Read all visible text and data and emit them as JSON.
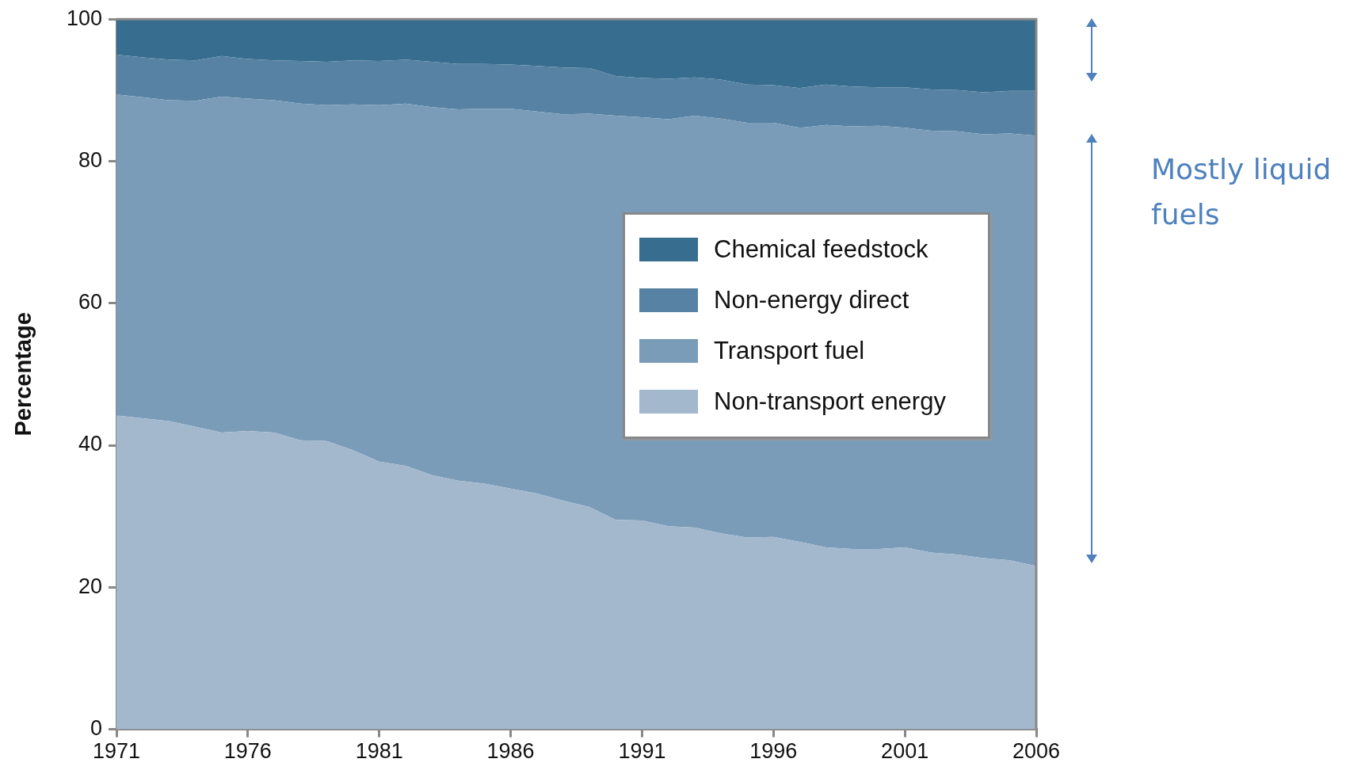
{
  "chart_data": {
    "type": "area",
    "stacked": true,
    "ylabel": "Percentage",
    "x": [
      1971,
      1972,
      1973,
      1974,
      1975,
      1976,
      1977,
      1978,
      1979,
      1980,
      1981,
      1982,
      1983,
      1984,
      1985,
      1986,
      1987,
      1988,
      1989,
      1990,
      1991,
      1992,
      1993,
      1994,
      1995,
      1996,
      1997,
      1998,
      1999,
      2000,
      2001,
      2002,
      2003,
      2004,
      2005,
      2006
    ],
    "xlim": [
      1971,
      2006
    ],
    "xticks": [
      1971,
      1976,
      1981,
      1986,
      1991,
      1996,
      2001,
      2006
    ],
    "ylim": [
      0,
      100
    ],
    "yticks": [
      0,
      20,
      40,
      60,
      80,
      100
    ],
    "grid": false,
    "legend": "right",
    "marker": "none",
    "series": [
      {
        "name": "Non-transport energy",
        "color": "#a3b8cd",
        "values": [
          44.2,
          43.8,
          43.4,
          42.6,
          41.8,
          42.0,
          41.8,
          40.7,
          40.6,
          39.3,
          37.7,
          37.1,
          35.8,
          35.0,
          34.6,
          33.9,
          33.2,
          32.2,
          31.3,
          29.5,
          29.4,
          28.6,
          28.4,
          27.6,
          27.0,
          27.1,
          26.4,
          25.6,
          25.4,
          25.4,
          25.6,
          24.9,
          24.6,
          24.1,
          23.8,
          23.0
        ]
      },
      {
        "name": "Transport fuel",
        "color": "#7a9cb8",
        "values": [
          45.2,
          45.2,
          45.2,
          45.9,
          47.3,
          46.8,
          46.8,
          47.4,
          47.3,
          48.7,
          50.2,
          51.0,
          51.8,
          52.3,
          52.8,
          53.5,
          53.8,
          54.4,
          55.4,
          56.9,
          56.8,
          57.3,
          58.0,
          58.4,
          58.4,
          58.3,
          58.3,
          59.5,
          59.5,
          59.6,
          59.1,
          59.4,
          59.6,
          59.7,
          60.1,
          60.6
        ]
      },
      {
        "name": "Non-energy direct",
        "color": "#5782a3",
        "values": [
          5.6,
          5.6,
          5.7,
          5.7,
          5.7,
          5.6,
          5.6,
          6.0,
          6.1,
          6.2,
          6.2,
          6.2,
          6.4,
          6.4,
          6.3,
          6.2,
          6.4,
          6.6,
          6.4,
          5.6,
          5.5,
          5.7,
          5.4,
          5.5,
          5.4,
          5.3,
          5.6,
          5.7,
          5.6,
          5.4,
          5.7,
          5.8,
          5.8,
          5.9,
          6.0,
          6.3
        ]
      },
      {
        "name": "Chemical feedstock",
        "color": "#376d8f",
        "values": [
          5.0,
          5.4,
          5.7,
          5.8,
          5.2,
          5.6,
          5.8,
          5.9,
          6.0,
          5.8,
          5.9,
          5.7,
          6.0,
          6.3,
          6.3,
          6.4,
          6.6,
          6.8,
          6.9,
          8.0,
          8.3,
          8.4,
          8.2,
          8.5,
          9.2,
          9.3,
          9.7,
          9.2,
          9.5,
          9.6,
          9.6,
          9.9,
          10.0,
          10.3,
          10.1,
          10.1
        ]
      }
    ],
    "annotations": [
      "Mostly liquid fuels"
    ]
  }
}
